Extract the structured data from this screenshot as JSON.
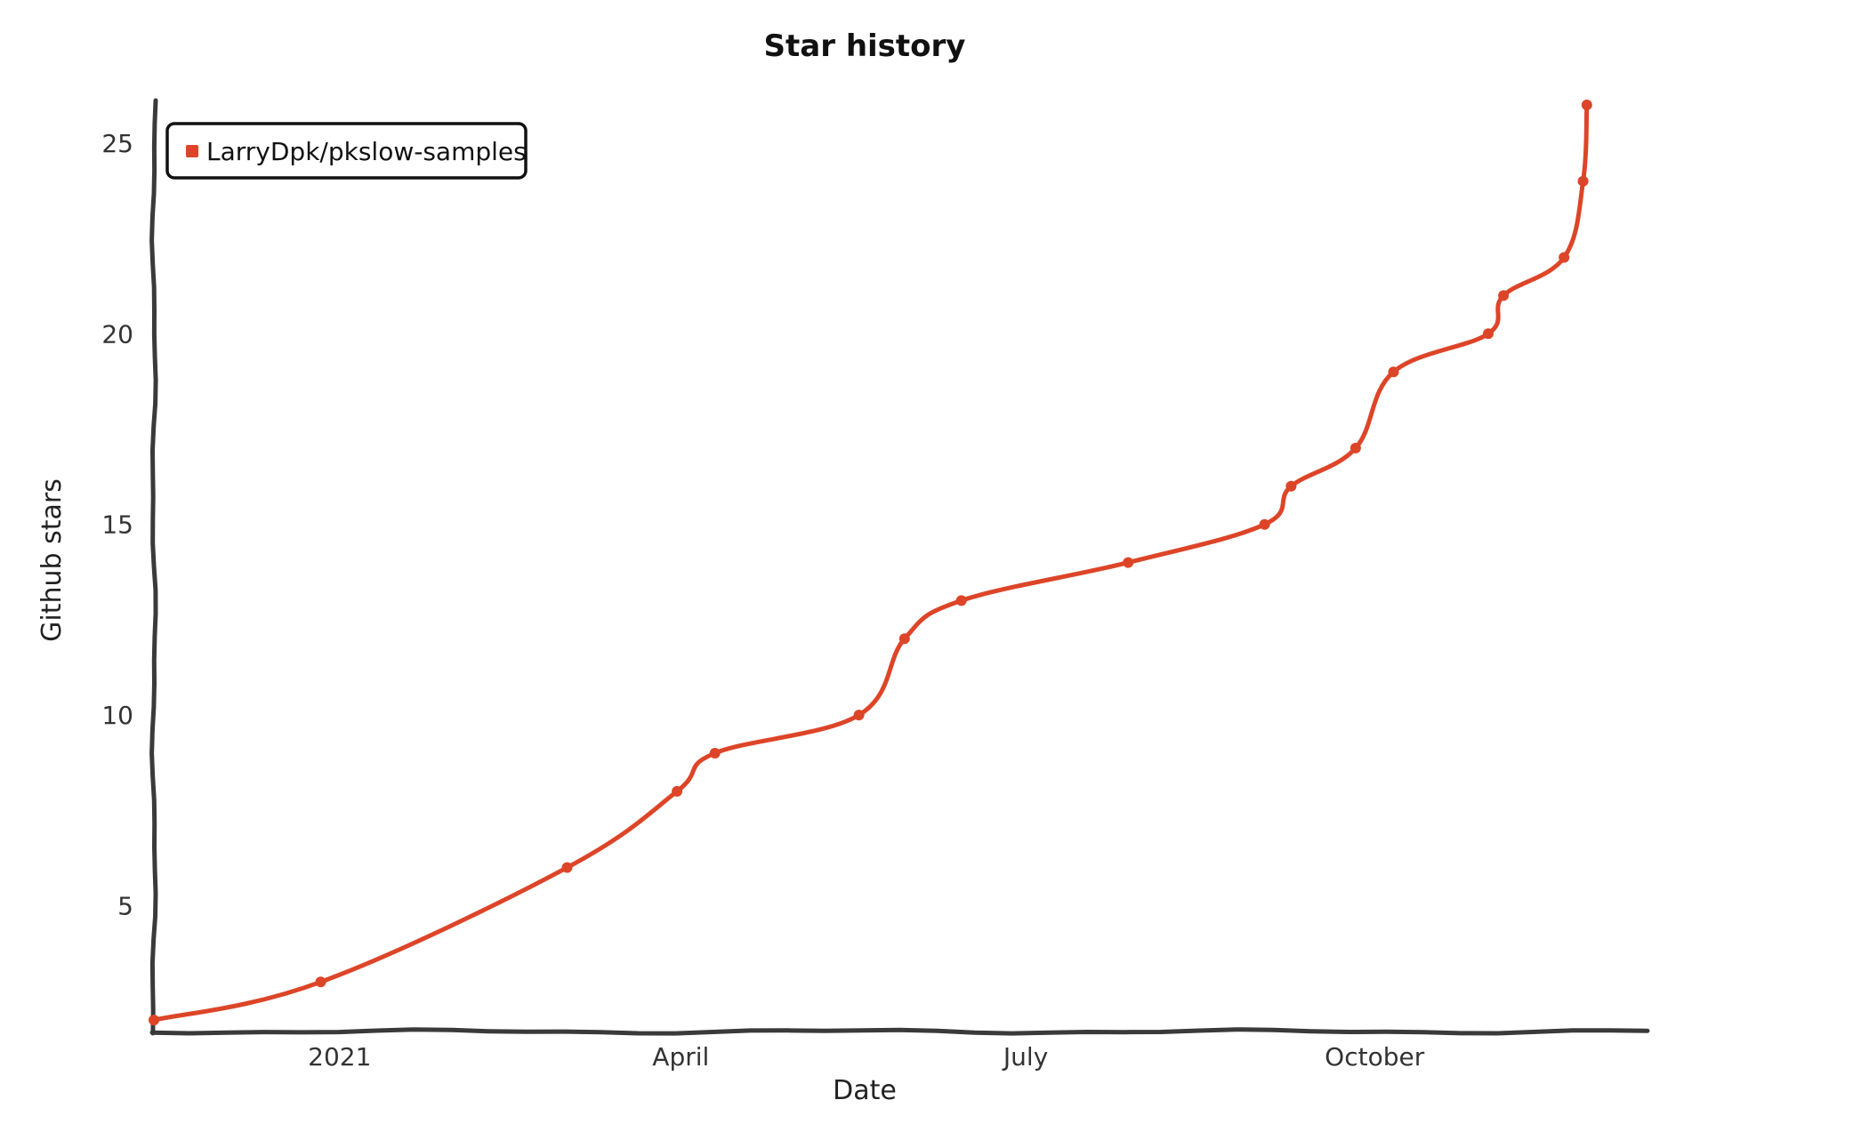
{
  "chart_data": {
    "type": "line",
    "title": "Star history",
    "xlabel": "Date",
    "ylabel": "Github stars",
    "legend_position": "top-left",
    "grid": false,
    "xlim": [
      "2020-11-13",
      "2021-12-12"
    ],
    "ylim": [
      1.7,
      26
    ],
    "x_ticks": [
      {
        "label": "2021",
        "date": "2021-01-01"
      },
      {
        "label": "April",
        "date": "2021-04-01"
      },
      {
        "label": "July",
        "date": "2021-07-01"
      },
      {
        "label": "October",
        "date": "2021-10-01"
      }
    ],
    "y_ticks": [
      5,
      10,
      15,
      20,
      25
    ],
    "series": [
      {
        "name": "LarryDpk/pkslow-samples",
        "color": "#dd4528",
        "points": [
          {
            "x": "2020-11-13",
            "y": 2
          },
          {
            "x": "2020-12-27",
            "y": 3
          },
          {
            "x": "2021-03-02",
            "y": 6
          },
          {
            "x": "2021-03-31",
            "y": 8
          },
          {
            "x": "2021-04-10",
            "y": 9
          },
          {
            "x": "2021-05-18",
            "y": 10
          },
          {
            "x": "2021-05-30",
            "y": 12
          },
          {
            "x": "2021-06-14",
            "y": 13
          },
          {
            "x": "2021-07-28",
            "y": 14
          },
          {
            "x": "2021-09-02",
            "y": 15
          },
          {
            "x": "2021-09-09",
            "y": 16
          },
          {
            "x": "2021-09-26",
            "y": 17
          },
          {
            "x": "2021-10-06",
            "y": 19
          },
          {
            "x": "2021-10-31",
            "y": 20
          },
          {
            "x": "2021-11-04",
            "y": 21
          },
          {
            "x": "2021-11-20",
            "y": 22
          },
          {
            "x": "2021-11-25",
            "y": 24
          },
          {
            "x": "2021-11-26",
            "y": 26
          }
        ]
      }
    ]
  }
}
